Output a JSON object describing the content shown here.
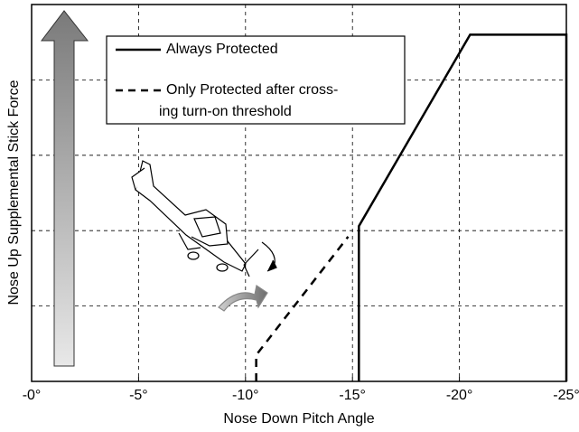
{
  "chart_data": {
    "type": "line",
    "xlabel": "Nose Down Pitch Angle",
    "ylabel": "Nose Up Supplemental Stick Force",
    "xlim": [
      0,
      -25
    ],
    "ylim": [
      0,
      5
    ],
    "xticks": [
      {
        "value": 0,
        "label": "-0°"
      },
      {
        "value": -5,
        "label": "-5°"
      },
      {
        "value": -10,
        "label": "-10°"
      },
      {
        "value": -15,
        "label": "-15°"
      },
      {
        "value": -20,
        "label": "-20°"
      },
      {
        "value": -25,
        "label": "-25°"
      }
    ],
    "yticks": [
      1,
      2,
      3,
      4
    ],
    "grid": true,
    "series": [
      {
        "name": [
          "Always Protected"
        ],
        "color": "#000000",
        "dashed": false,
        "x": [
          -15.3,
          -15.3,
          -20.5,
          -25,
          -25
        ],
        "values": [
          0,
          2.06,
          4.6,
          4.6,
          0
        ]
      },
      {
        "name": [
          "Only Protected after cross-",
          "ing turn-on threshold"
        ],
        "color": "#000000",
        "dashed": true,
        "x": [
          -10.5,
          -10.5,
          -14.8
        ],
        "values": [
          0,
          0.35,
          1.92
        ]
      }
    ]
  }
}
